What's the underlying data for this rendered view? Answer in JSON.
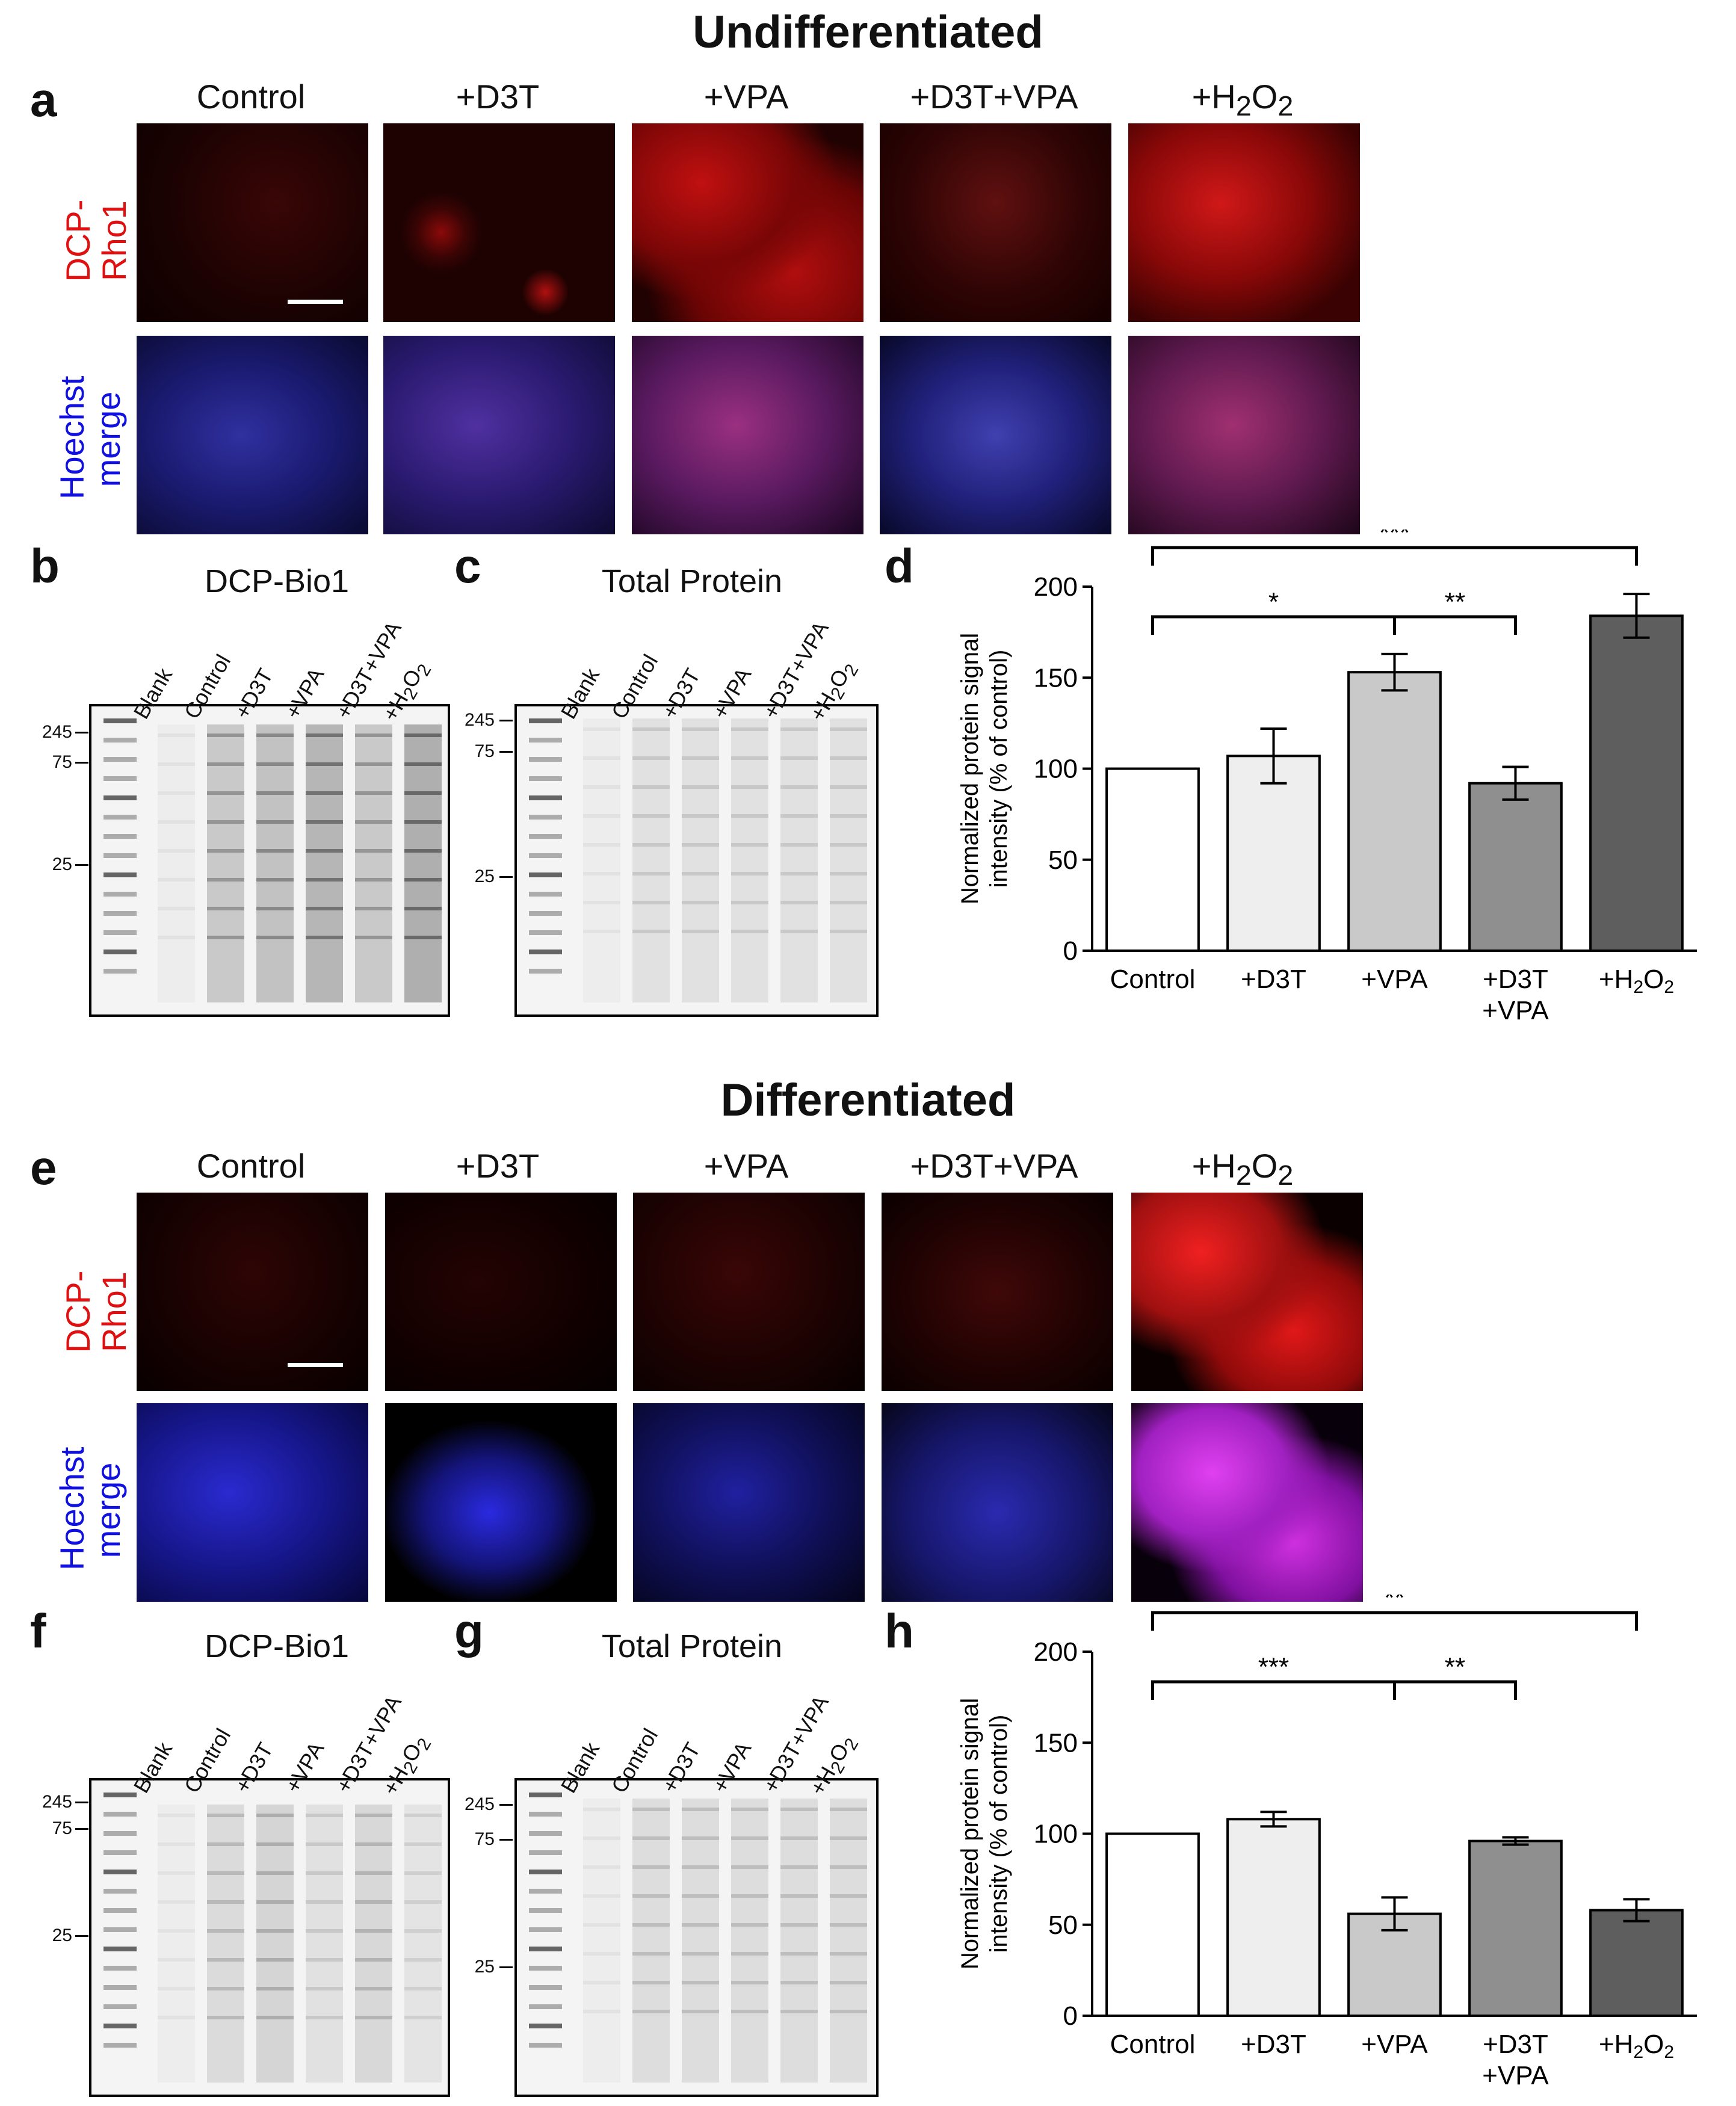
{
  "sections": {
    "top_title": "Undifferentiated",
    "bottom_title": "Differentiated"
  },
  "panels": {
    "a": "a",
    "b": "b",
    "c": "c",
    "d": "d",
    "e": "e",
    "f": "f",
    "g": "g",
    "h": "h"
  },
  "conditions": [
    "Control",
    "+D3T",
    "+VPA",
    "+D3T+VPA",
    "+H2O2"
  ],
  "row_labels": {
    "stain": "DCP-Rho1",
    "merge_line1": "Hoechst",
    "merge_line2": "merge"
  },
  "blots": {
    "dcp_title": "DCP-Bio1",
    "total_title_top": "Total Protein",
    "total_title_bottom": "Total Protein",
    "lanes": [
      "Blank",
      "Control",
      "+D3T",
      "+VPA",
      "+D3T+VPA",
      "+H2O2"
    ],
    "mw_b": [
      "245",
      "75",
      "25"
    ],
    "mw_c": [
      "245",
      "75",
      "25"
    ],
    "mw_f": [
      "245",
      "75",
      "25"
    ],
    "mw_g": [
      "245",
      "75",
      "25"
    ]
  },
  "chart_data": [
    {
      "panel": "d",
      "type": "bar",
      "categories": [
        "Control",
        "+D3T",
        "+VPA",
        "+D3T +VPA",
        "+H2O2"
      ],
      "values": [
        100,
        107,
        153,
        92,
        184
      ],
      "errors": [
        0,
        15,
        10,
        9,
        12
      ],
      "colors": [
        "#ffffff",
        "#eeeeee",
        "#c9c9c9",
        "#8f8f8f",
        "#5e5e5e"
      ],
      "ylabel": "Normalized protein signal intensity (% of control)",
      "ylim": [
        0,
        200
      ],
      "yticks": [
        0,
        50,
        100,
        150,
        200
      ],
      "significance": [
        {
          "from": 0,
          "to": 4,
          "label": "***"
        },
        {
          "from": 0,
          "to": 2,
          "label": "*"
        },
        {
          "from": 2,
          "to": 3,
          "label": "**"
        }
      ]
    },
    {
      "panel": "h",
      "type": "bar",
      "categories": [
        "Control",
        "+D3T",
        "+VPA",
        "+D3T +VPA",
        "+H2O2"
      ],
      "values": [
        100,
        108,
        56,
        96,
        58
      ],
      "errors": [
        0,
        4,
        9,
        2,
        6
      ],
      "colors": [
        "#ffffff",
        "#eeeeee",
        "#c9c9c9",
        "#8f8f8f",
        "#5e5e5e"
      ],
      "ylabel": "Normalized protein signal intensity (% of control)",
      "ylim": [
        0,
        200
      ],
      "yticks": [
        0,
        50,
        100,
        150,
        200
      ],
      "significance": [
        {
          "from": 0,
          "to": 4,
          "label": "**"
        },
        {
          "from": 0,
          "to": 2,
          "label": "***"
        },
        {
          "from": 2,
          "to": 3,
          "label": "**"
        }
      ]
    }
  ]
}
